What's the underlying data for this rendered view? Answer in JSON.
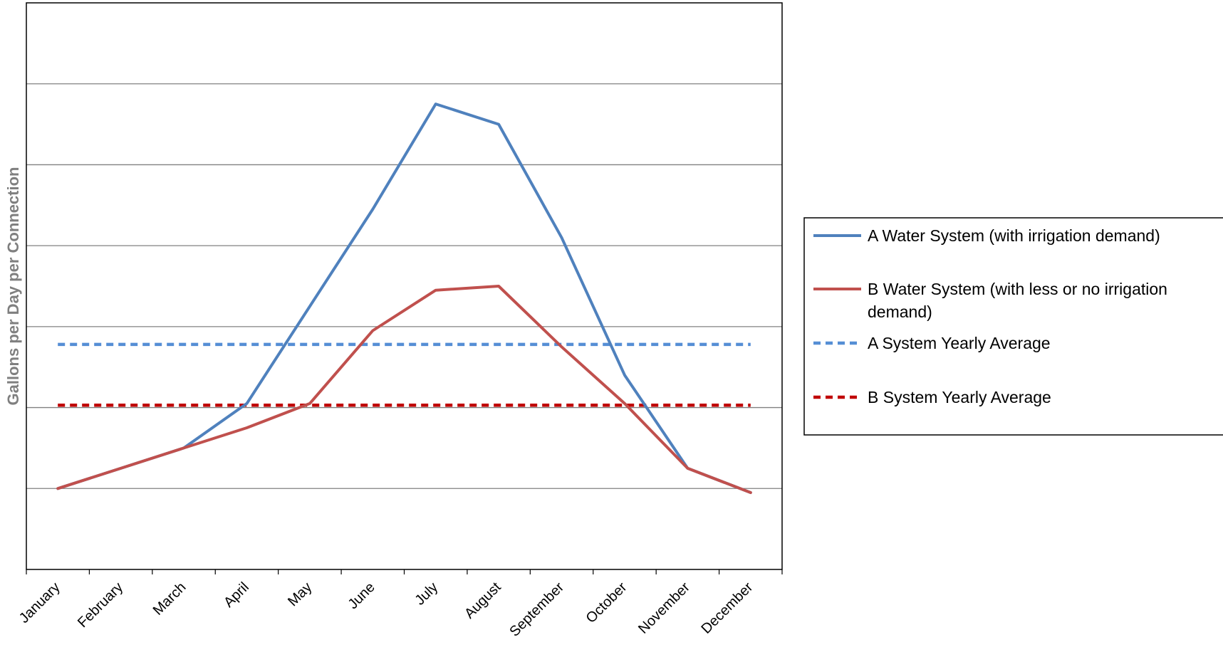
{
  "chart_data": {
    "type": "line",
    "title": "",
    "xlabel": "",
    "ylabel": "Gallons per Day per Connection",
    "categories": [
      "January",
      "February",
      "March",
      "April",
      "May",
      "June",
      "July",
      "August",
      "September",
      "October",
      "November",
      "December"
    ],
    "ylim": [
      0,
      7
    ],
    "grid": true,
    "legend_position": "right",
    "series": [
      {
        "name": "A Water System (with irrigation demand)",
        "color": "#4f81bd",
        "style": "solid",
        "values": [
          1.0,
          1.25,
          1.5,
          2.05,
          3.25,
          4.45,
          5.75,
          5.5,
          4.1,
          2.4,
          1.25,
          0.95
        ]
      },
      {
        "name": "B Water System (with less or no irrigation demand)",
        "color": "#c0504d",
        "style": "solid",
        "values": [
          1.0,
          1.25,
          1.5,
          1.75,
          2.05,
          2.95,
          3.45,
          3.5,
          2.75,
          2.05,
          1.25,
          0.95
        ]
      },
      {
        "name": "A System Yearly Average",
        "color": "#558ed5",
        "style": "dashed",
        "values": [
          2.78,
          2.78,
          2.78,
          2.78,
          2.78,
          2.78,
          2.78,
          2.78,
          2.78,
          2.78,
          2.78,
          2.78
        ]
      },
      {
        "name": "B System Yearly Average",
        "color": "#c00000",
        "style": "dashed",
        "values": [
          2.03,
          2.03,
          2.03,
          2.03,
          2.03,
          2.03,
          2.03,
          2.03,
          2.03,
          2.03,
          2.03,
          2.03
        ]
      }
    ],
    "legend_lines": [
      [
        "A Water System (with irrigation demand)"
      ],
      [
        "B Water System (with less or no irrigation",
        "demand)"
      ],
      [
        "A System Yearly Average"
      ],
      [
        "B System Yearly Average"
      ]
    ]
  }
}
